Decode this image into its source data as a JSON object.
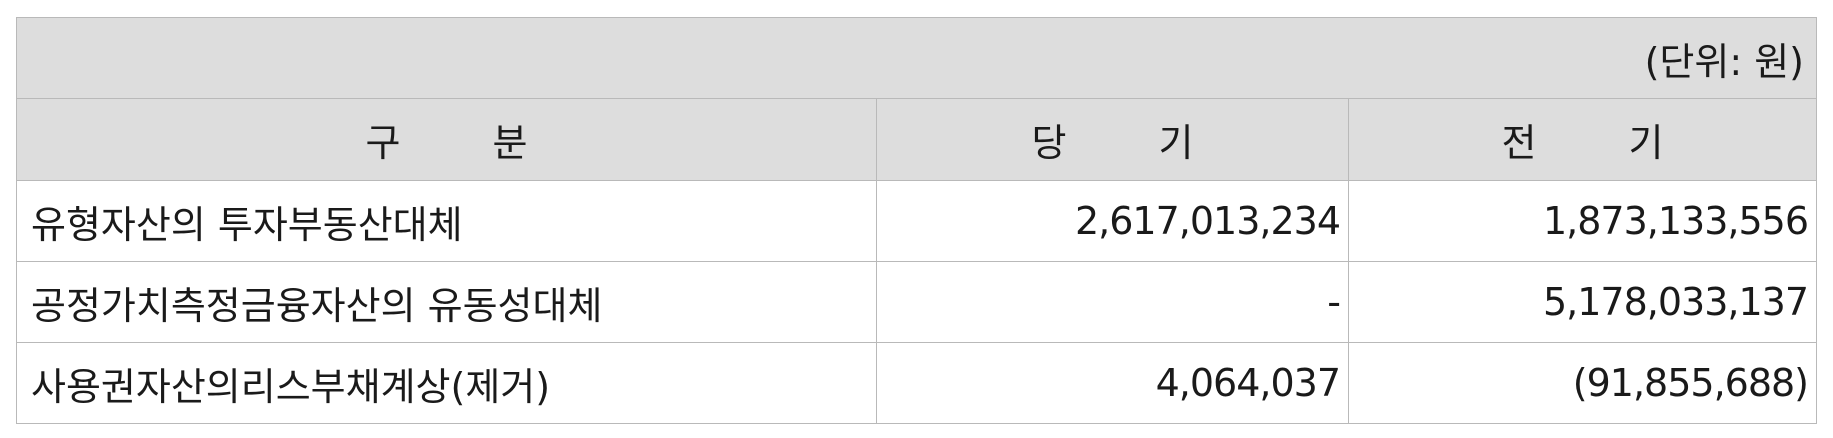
{
  "unit_note": "(단위: 원)",
  "headers": {
    "category": "구 분",
    "current": "당 기",
    "prior": "전 기"
  },
  "rows": [
    {
      "label": "유형자산의 투자부동산대체",
      "current": "2,617,013,234",
      "prior": "1,873,133,556"
    },
    {
      "label": "공정가치측정금융자산의 유동성대체",
      "current": "-",
      "prior": "5,178,033,137"
    },
    {
      "label": "사용권자산의리스부채계상(제거)",
      "current": "4,064,037",
      "prior": "(91,855,688)"
    }
  ]
}
